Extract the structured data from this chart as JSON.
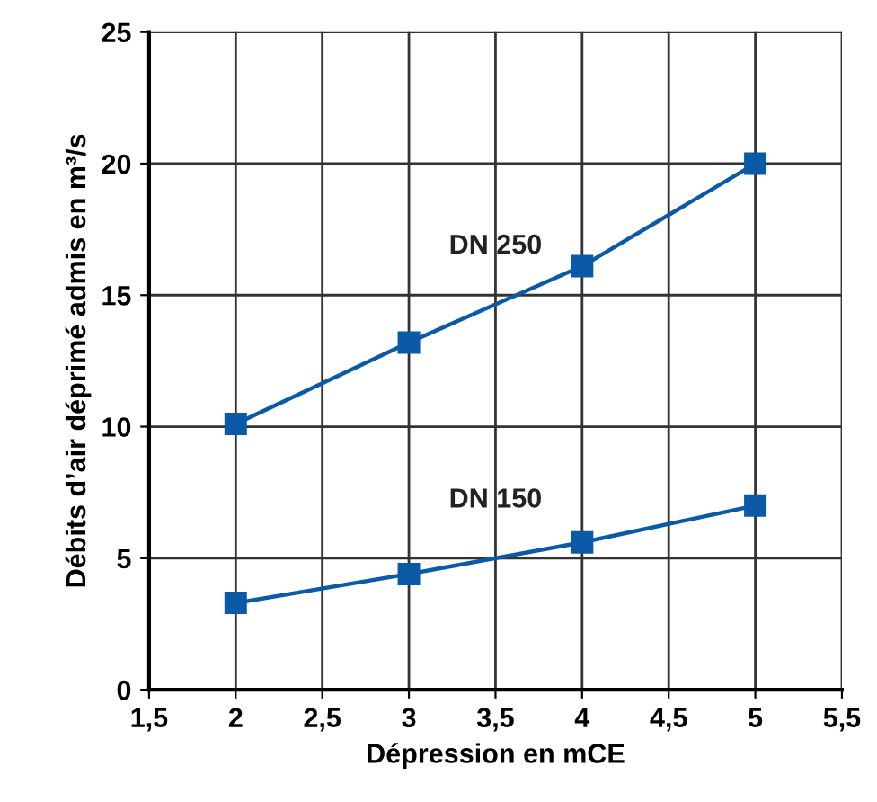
{
  "chart_data": {
    "type": "line",
    "xlabel": "Dépression en mCE",
    "ylabel": "Débits d’air déprimé admis en m³/s",
    "x": [
      2,
      3,
      4,
      5
    ],
    "series": [
      {
        "name": "DN 250",
        "color": "#0a5aa8",
        "values": [
          10.1,
          13.2,
          16.1,
          20.0
        ]
      },
      {
        "name": "DN 150",
        "color": "#0a5aa8",
        "values": [
          3.3,
          4.4,
          5.6,
          7.0
        ]
      }
    ],
    "xlim": [
      1.5,
      5.5
    ],
    "xticks": [
      {
        "value": 1.5,
        "label": "1,5"
      },
      2,
      {
        "value": 2.5,
        "label": "2,5"
      },
      3,
      {
        "value": 3.5,
        "label": "3,5"
      },
      4,
      {
        "value": 4.5,
        "label": "4,5"
      },
      5,
      {
        "value": 5.5,
        "label": "5,5"
      }
    ],
    "ylim": [
      0,
      25
    ],
    "yticks": [
      0,
      5,
      10,
      15,
      20,
      25
    ],
    "grid": true,
    "legend": false,
    "marker": "square",
    "line_style": "solid"
  }
}
